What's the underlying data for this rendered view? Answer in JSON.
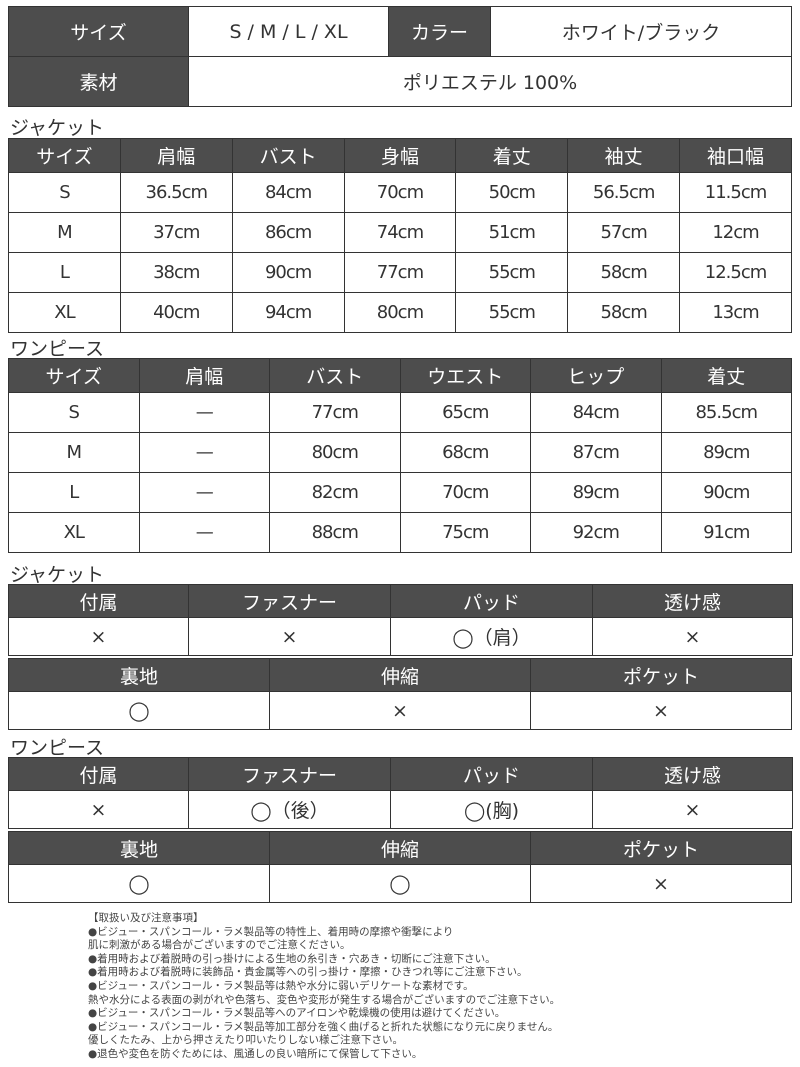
{
  "spec": {
    "size_label": "サイズ",
    "size_value": "S / M / L / XL",
    "color_label": "カラー",
    "color_value": "ホワイト/ブラック",
    "material_label": "素材",
    "material_value": "ポリエステル 100%"
  },
  "jacket_size": {
    "title": "ジャケット",
    "headers": [
      "サイズ",
      "肩幅",
      "バスト",
      "身幅",
      "着丈",
      "袖丈",
      "袖口幅"
    ],
    "rows": [
      [
        "S",
        "36.5cm",
        "84cm",
        "70cm",
        "50cm",
        "56.5cm",
        "11.5cm"
      ],
      [
        "M",
        "37cm",
        "86cm",
        "74cm",
        "51cm",
        "57cm",
        "12cm"
      ],
      [
        "L",
        "38cm",
        "90cm",
        "77cm",
        "55cm",
        "58cm",
        "12.5cm"
      ],
      [
        "XL",
        "40cm",
        "94cm",
        "80cm",
        "55cm",
        "58cm",
        "13cm"
      ]
    ]
  },
  "dress_size": {
    "title": "ワンピース",
    "headers": [
      "サイズ",
      "肩幅",
      "バスト",
      "ウエスト",
      "ヒップ",
      "着丈"
    ],
    "rows": [
      [
        "S",
        "—",
        "77cm",
        "65cm",
        "84cm",
        "85.5cm"
      ],
      [
        "M",
        "—",
        "80cm",
        "68cm",
        "87cm",
        "89cm"
      ],
      [
        "L",
        "—",
        "82cm",
        "70cm",
        "89cm",
        "90cm"
      ],
      [
        "XL",
        "—",
        "88cm",
        "75cm",
        "92cm",
        "91cm"
      ]
    ]
  },
  "jacket_features": {
    "title": "ジャケット",
    "headers1": [
      "付属",
      "ファスナー",
      "パッド",
      "透け感"
    ],
    "values1": [
      "×",
      "×",
      "◯（肩）",
      "×"
    ],
    "headers2": [
      "裏地",
      "伸縮",
      "ポケット"
    ],
    "values2": [
      "◯",
      "×",
      "×"
    ]
  },
  "dress_features": {
    "title": "ワンピース",
    "headers1": [
      "付属",
      "ファスナー",
      "パッド",
      "透け感"
    ],
    "values1": [
      "×",
      "◯（後）",
      "◯(胸)",
      "×"
    ],
    "headers2": [
      "裏地",
      "伸縮",
      "ポケット"
    ],
    "values2": [
      "◯",
      "◯",
      "×"
    ]
  },
  "notes": [
    "【取扱い及び注意事項】",
    "●ビジュー・スパンコール・ラメ製品等の特性上、着用時の摩擦や衝撃により",
    "肌に刺激がある場合がございますのでご注意ください。",
    "●着用時および着脱時の引っ掛けによる生地の糸引き・穴あき・切断にご注意下さい。",
    "●着用時および着脱時に装飾品・貴金属等への引っ掛け・摩擦・ひきつれ等にご注意下さい。",
    "●ビジュー・スパンコール・ラメ製品等は熱や水分に弱いデリケートな素材です。",
    "熱や水分による表面の剥がれや色落ち、変色や変形が発生する場合がございますのでご注意下さい。",
    "●ビジュー・スパンコール・ラメ製品等へのアイロンや乾燥機の使用は避けてください。",
    "●ビジュー・スパンコール・ラメ製品等加工部分を強く曲げると折れた状態になり元に戻りません。",
    "優しくたたみ、上から押さえたり叩いたりしない様ご注意下さい。",
    "●退色や変色を防ぐためには、風通しの良い暗所にて保管して下さい。"
  ]
}
